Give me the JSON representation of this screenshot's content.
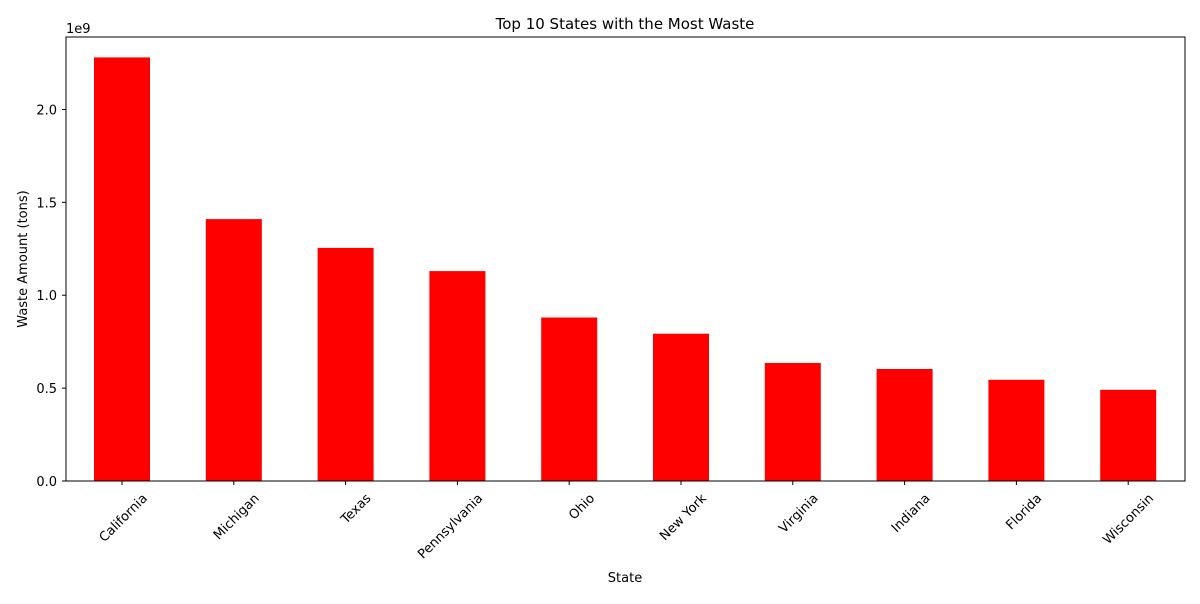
{
  "chart_data": {
    "type": "bar",
    "title": "Top 10 States with the Most Waste",
    "xlabel": "State",
    "ylabel": "Waste Amount (tons)",
    "y_offset_label": "1e9",
    "categories": [
      "California",
      "Michigan",
      "Texas",
      "Pennsylvania",
      "Ohio",
      "New York",
      "Virginia",
      "Indiana",
      "Florida",
      "Wisconsin"
    ],
    "values": [
      2280000000,
      1410000000,
      1255000000,
      1130000000,
      880000000,
      793000000,
      635000000,
      603000000,
      545000000,
      491000000
    ],
    "ylim": [
      0,
      2390000000
    ],
    "yticks": [
      0,
      500000000,
      1000000000,
      1500000000,
      2000000000
    ],
    "ytick_labels": [
      "0.0",
      "0.5",
      "1.0",
      "1.5",
      "2.0"
    ],
    "bar_color": "#ff0000",
    "grid": false,
    "legend": "none"
  }
}
